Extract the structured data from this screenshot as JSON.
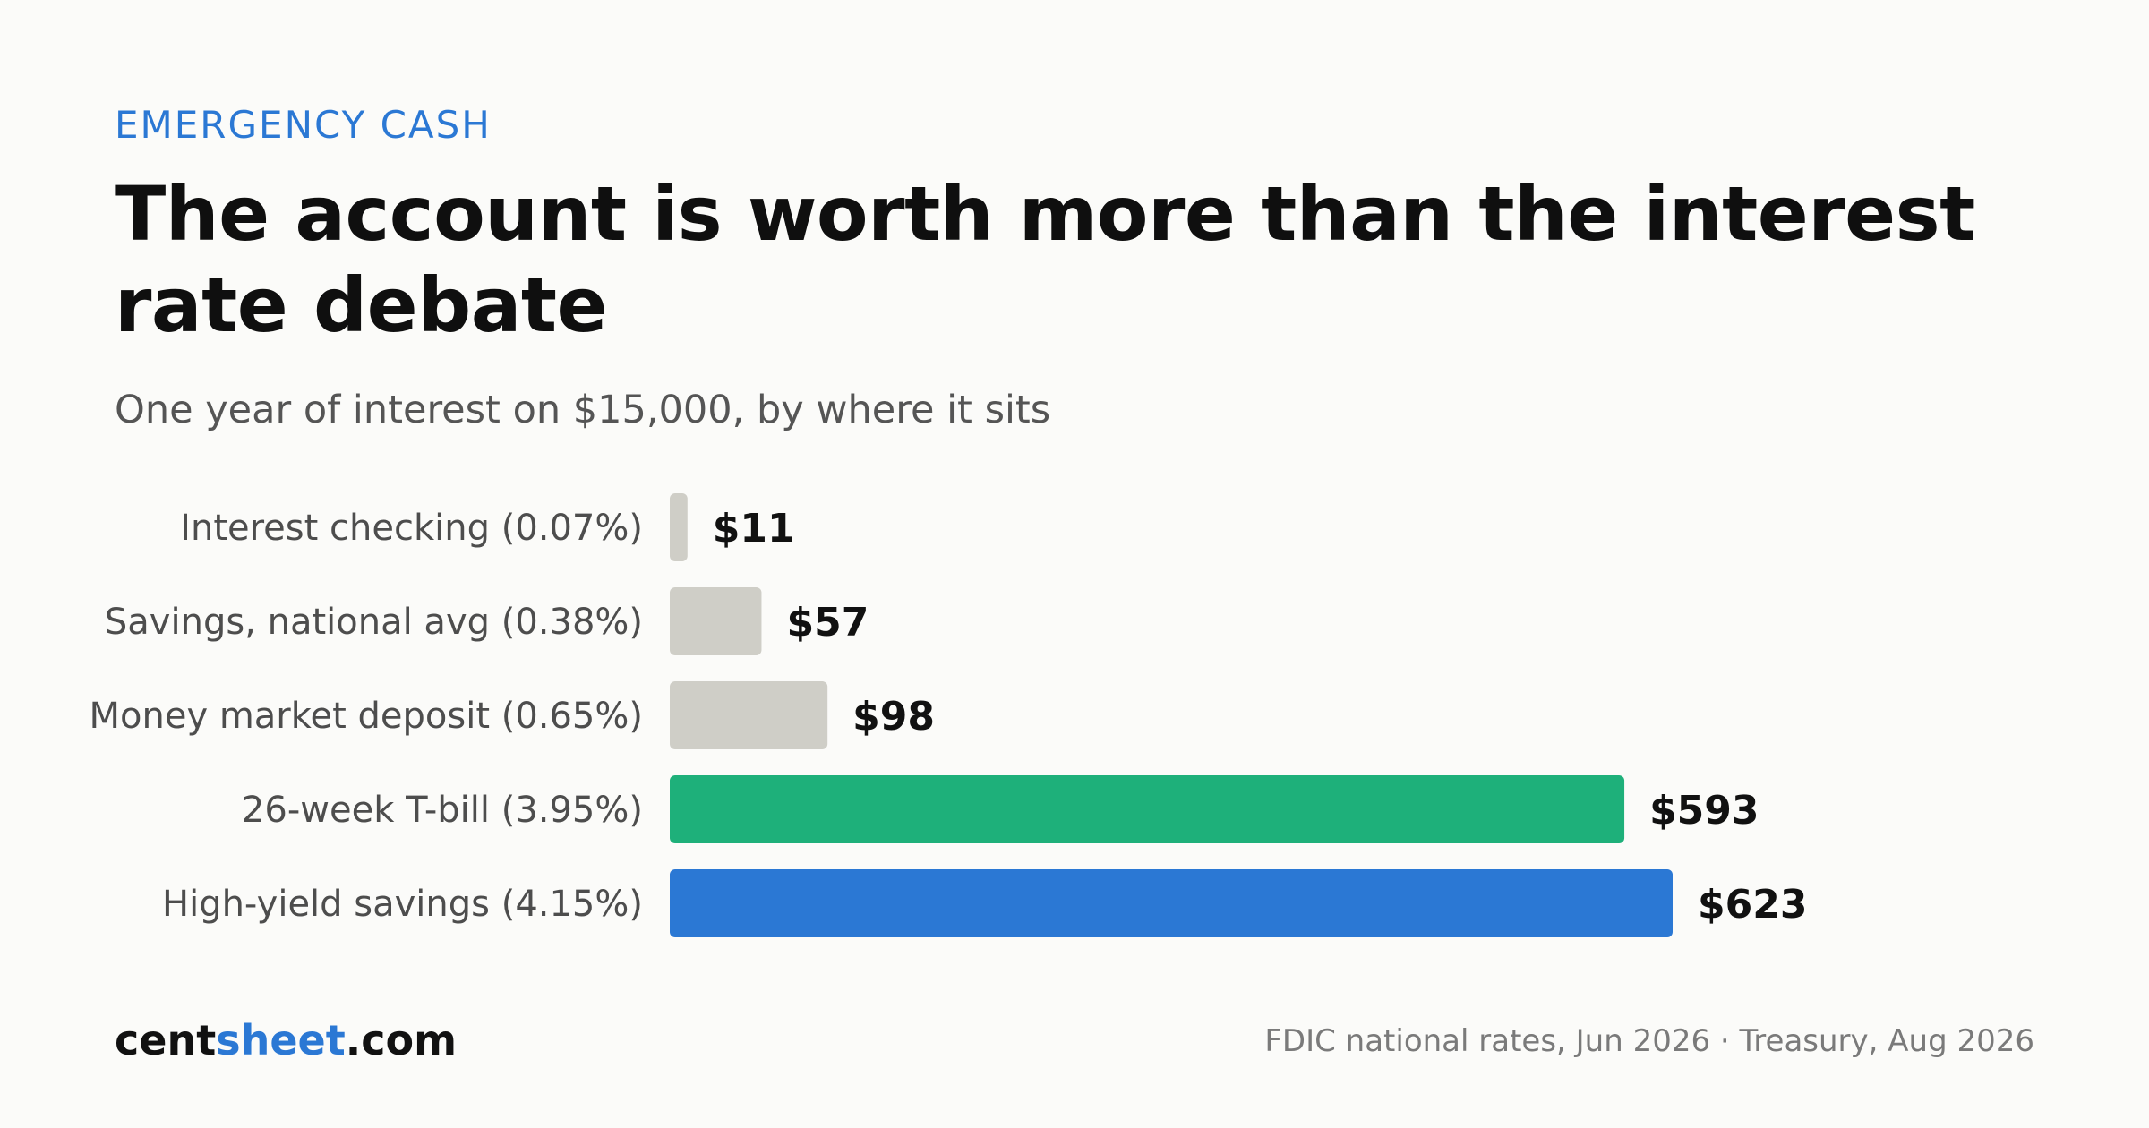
{
  "header": {
    "kicker": "EMERGENCY CASH",
    "title": "The account is worth more than the interest rate debate",
    "subtitle": "One year of interest on $15,000, by where it sits"
  },
  "footer": {
    "brand_part1": "cent",
    "brand_part2": "sheet",
    "brand_part3": ".com",
    "source": "FDIC national rates, Jun 2026 · Treasury, Aug 2026"
  },
  "colors": {
    "accent": "#2b78d4",
    "neutral_bar": "#cfcec7",
    "tbill_bar": "#1eb07a",
    "highyield_bar": "#2b78d4",
    "background": "#fbfbf9"
  },
  "chart_data": {
    "type": "bar",
    "orientation": "horizontal",
    "title": "The account is worth more than the interest rate debate",
    "subtitle": "One year of interest on $15,000, by where it sits",
    "categories": [
      "Interest checking (0.07%)",
      "Savings, national avg (0.38%)",
      "Money market deposit (0.65%)",
      "26-week T-bill (3.95%)",
      "High-yield savings (4.15%)"
    ],
    "values": [
      11,
      57,
      98,
      593,
      623
    ],
    "value_labels": [
      "$11",
      "$57",
      "$98",
      "$593",
      "$623"
    ],
    "bar_colors": [
      "#cfcec7",
      "#cfcec7",
      "#cfcec7",
      "#1eb07a",
      "#2b78d4"
    ],
    "xlim": [
      0,
      623
    ],
    "grid": false,
    "legend": "none"
  }
}
